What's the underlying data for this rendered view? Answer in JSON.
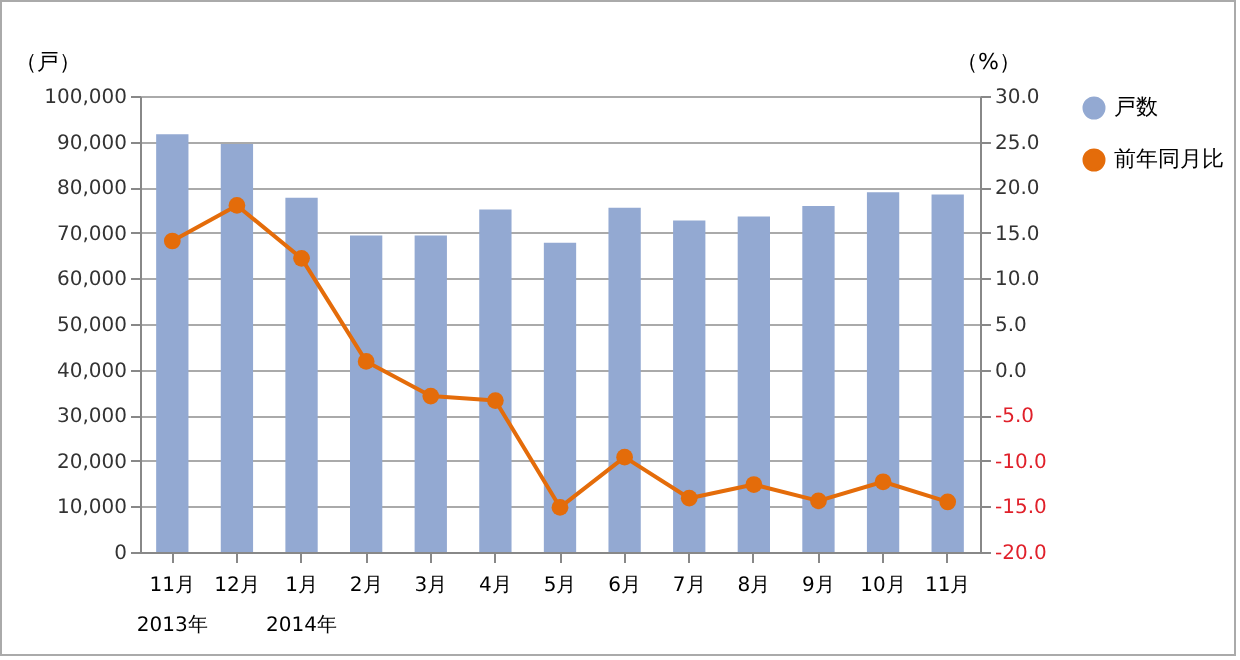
{
  "chart_data": {
    "type": "bar",
    "categories": [
      "11月\n2013年",
      "12月",
      "1月\n2014年",
      "2月",
      "3月",
      "4月",
      "5月",
      "6月",
      "7月",
      "8月",
      "9月",
      "10月",
      "11月"
    ],
    "series": [
      {
        "name": "戸数",
        "color": "#93a9d2",
        "values": [
          91600,
          89500,
          77700,
          69400,
          69400,
          75100,
          67800,
          75500,
          72700,
          73600,
          75900,
          78900,
          78400
        ]
      },
      {
        "name": "前年同月比",
        "type": "line",
        "axis": "y2",
        "color": "#e46c0a",
        "marker": "circle",
        "values": [
          14.1,
          18.0,
          12.2,
          0.9,
          -2.9,
          -3.4,
          -15.1,
          -9.6,
          -14.1,
          -12.6,
          -14.4,
          -12.3,
          -14.5
        ]
      }
    ],
    "ylabel": "（戸）",
    "y2label": "（%）",
    "ylim": [
      0,
      100000
    ],
    "yticks": [
      {
        "value": 0,
        "label": "0"
      },
      {
        "value": 10000,
        "label": "10,000"
      },
      {
        "value": 20000,
        "label": "20,000"
      },
      {
        "value": 30000,
        "label": "30,000"
      },
      {
        "value": 40000,
        "label": "40,000"
      },
      {
        "value": 50000,
        "label": "50,000"
      },
      {
        "value": 60000,
        "label": "60,000"
      },
      {
        "value": 70000,
        "label": "70,000"
      },
      {
        "value": 80000,
        "label": "80,000"
      },
      {
        "value": 90000,
        "label": "90,000"
      },
      {
        "value": 100000,
        "label": "100,000"
      }
    ],
    "y2lim": [
      -20,
      30
    ],
    "y2ticks": [
      {
        "value": -20,
        "label": "-20.0"
      },
      {
        "value": -15,
        "label": "-15.0"
      },
      {
        "value": -10,
        "label": "-10.0"
      },
      {
        "value": -5,
        "label": "-5.0"
      },
      {
        "value": 0,
        "label": "0.0"
      },
      {
        "value": 5,
        "label": "5.0"
      },
      {
        "value": 10,
        "label": "10.0"
      },
      {
        "value": 15,
        "label": "15.0"
      },
      {
        "value": 20,
        "label": "20.0"
      },
      {
        "value": 25,
        "label": "25.0"
      },
      {
        "value": 30,
        "label": "30.0"
      }
    ],
    "grid": "y",
    "legend": "right"
  }
}
